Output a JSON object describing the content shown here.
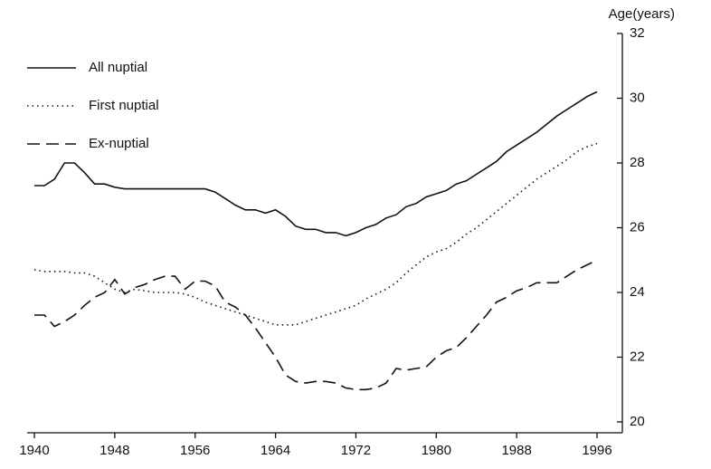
{
  "chart_data": {
    "type": "line",
    "y_label": "Age(years)",
    "x": [
      1940,
      1941,
      1942,
      1943,
      1944,
      1945,
      1946,
      1947,
      1948,
      1949,
      1950,
      1951,
      1952,
      1953,
      1954,
      1955,
      1956,
      1957,
      1958,
      1959,
      1960,
      1961,
      1962,
      1963,
      1964,
      1965,
      1966,
      1967,
      1968,
      1969,
      1970,
      1971,
      1972,
      1973,
      1974,
      1975,
      1976,
      1977,
      1978,
      1979,
      1980,
      1981,
      1982,
      1983,
      1984,
      1985,
      1986,
      1987,
      1988,
      1989,
      1990,
      1991,
      1992,
      1993,
      1994,
      1995,
      1996
    ],
    "series": [
      {
        "name": "All nuptial",
        "color": "#111111",
        "dash": "solid",
        "values": [
          27.3,
          27.3,
          27.5,
          28.0,
          28.0,
          27.7,
          27.35,
          27.35,
          27.25,
          27.2,
          27.2,
          27.2,
          27.2,
          27.2,
          27.2,
          27.2,
          27.2,
          27.2,
          27.1,
          26.9,
          26.7,
          26.55,
          26.55,
          26.45,
          26.55,
          26.35,
          26.05,
          25.95,
          25.95,
          25.85,
          25.85,
          25.75,
          25.85,
          26.0,
          26.1,
          26.3,
          26.4,
          26.65,
          26.75,
          26.95,
          27.05,
          27.15,
          27.35,
          27.45,
          27.65,
          27.85,
          28.05,
          28.35,
          28.55,
          28.75,
          28.95,
          29.2,
          29.45,
          29.65,
          29.85,
          30.05,
          30.2
        ]
      },
      {
        "name": "First nuptial",
        "color": "#111111",
        "dash": "dotted",
        "values": [
          24.7,
          24.65,
          24.65,
          24.65,
          24.6,
          24.6,
          24.5,
          24.3,
          24.1,
          24.0,
          24.1,
          24.05,
          24.0,
          24.0,
          24.0,
          23.95,
          23.85,
          23.7,
          23.6,
          23.5,
          23.4,
          23.3,
          23.2,
          23.1,
          23.0,
          23.0,
          23.0,
          23.1,
          23.2,
          23.3,
          23.4,
          23.5,
          23.6,
          23.8,
          23.95,
          24.1,
          24.3,
          24.6,
          24.85,
          25.1,
          25.25,
          25.35,
          25.55,
          25.8,
          26.0,
          26.25,
          26.5,
          26.75,
          27.0,
          27.25,
          27.5,
          27.7,
          27.9,
          28.1,
          28.35,
          28.5,
          28.6
        ]
      },
      {
        "name": "Ex-nuptial",
        "color": "#111111",
        "dash": "dashed",
        "values": [
          23.3,
          23.3,
          22.95,
          23.1,
          23.3,
          23.6,
          23.85,
          24.0,
          24.4,
          23.95,
          24.15,
          24.25,
          24.4,
          24.5,
          24.5,
          24.1,
          24.35,
          24.35,
          24.2,
          23.7,
          23.55,
          23.3,
          22.9,
          22.45,
          22.0,
          21.45,
          21.25,
          21.2,
          21.25,
          21.25,
          21.2,
          21.05,
          21.0,
          21.0,
          21.05,
          21.2,
          21.65,
          21.6,
          21.65,
          21.7,
          22.0,
          22.2,
          22.3,
          22.6,
          22.95,
          23.3,
          23.7,
          23.85,
          24.05,
          24.15,
          24.3,
          24.3,
          24.3,
          24.5,
          24.7,
          24.85,
          25.0
        ]
      }
    ],
    "xlim": [
      1940,
      1996
    ],
    "xticks": [
      1940,
      1948,
      1956,
      1964,
      1972,
      1980,
      1988,
      1996
    ],
    "ylim": [
      20,
      32
    ],
    "yticks": [
      20,
      22,
      24,
      26,
      28,
      30,
      32
    ],
    "y_axis_side": "right",
    "legend": "upper left"
  }
}
